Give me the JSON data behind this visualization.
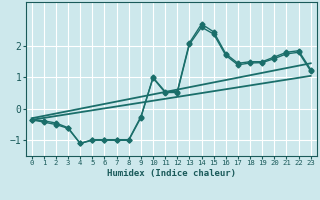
{
  "xlabel": "Humidex (Indice chaleur)",
  "bg_color": "#cde8ec",
  "grid_color": "#b0d8de",
  "line_color": "#1a6e6a",
  "xlim": [
    -0.5,
    23.5
  ],
  "ylim": [
    -1.5,
    3.4
  ],
  "xticks": [
    0,
    1,
    2,
    3,
    4,
    5,
    6,
    7,
    8,
    9,
    10,
    11,
    12,
    13,
    14,
    15,
    16,
    17,
    18,
    19,
    20,
    21,
    22,
    23
  ],
  "yticks": [
    -1,
    0,
    1,
    2
  ],
  "curve1_x": [
    0,
    1,
    2,
    3,
    4,
    5,
    6,
    7,
    8,
    9,
    10,
    11,
    12,
    13,
    14,
    15,
    16,
    17,
    18,
    19,
    20,
    21,
    22,
    23
  ],
  "curve1_y": [
    -0.35,
    -0.42,
    -0.5,
    -0.62,
    -1.1,
    -1.0,
    -1.0,
    -1.0,
    -1.0,
    -0.28,
    1.0,
    0.55,
    0.55,
    2.1,
    2.7,
    2.45,
    1.75,
    1.45,
    1.5,
    1.5,
    1.65,
    1.8,
    1.85,
    1.25
  ],
  "curve2_x": [
    0,
    1,
    2,
    3,
    4,
    5,
    6,
    7,
    8,
    9,
    10,
    11,
    12,
    13,
    14,
    15,
    16,
    17,
    18,
    19,
    20,
    21,
    22,
    23
  ],
  "curve2_y": [
    -0.35,
    -0.38,
    -0.45,
    -0.6,
    -1.1,
    -0.98,
    -0.98,
    -0.98,
    -0.98,
    -0.25,
    0.98,
    0.52,
    0.52,
    2.05,
    2.6,
    2.38,
    1.7,
    1.4,
    1.46,
    1.47,
    1.6,
    1.75,
    1.8,
    1.2
  ],
  "line1_x": [
    0,
    23
  ],
  "line1_y": [
    -0.35,
    1.05
  ],
  "line2_x": [
    0,
    23
  ],
  "line2_y": [
    -0.3,
    1.45
  ],
  "marker": "D",
  "markersize": 2.5,
  "linewidth": 1.0
}
